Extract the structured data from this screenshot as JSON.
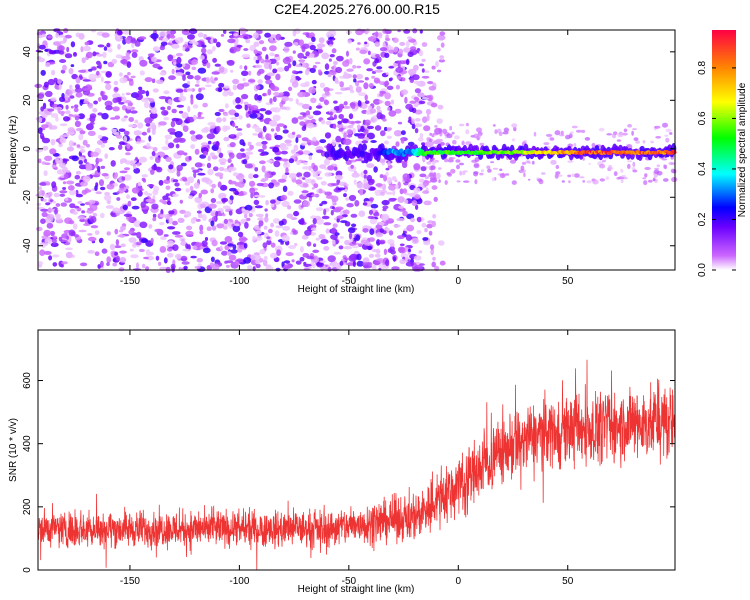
{
  "chart_data": [
    {
      "type": "heatmap",
      "title": "C2E4.2025.276.00.00.R15",
      "xlabel": "Height of straight line (km)",
      "ylabel": "Frequency (Hz)",
      "xlim": [
        -192,
        99
      ],
      "ylim": [
        -50,
        49
      ],
      "x_ticks": [
        -150,
        -100,
        -50,
        0,
        50
      ],
      "y_ticks": [
        -40,
        -20,
        0,
        20,
        40
      ],
      "colorbar": {
        "label": "Normalized spectral amplitude",
        "range": [
          0,
          0.95
        ],
        "ticks": [
          0.0,
          0.2,
          0.4,
          0.6,
          0.8
        ],
        "colormap": "purple-blue-cyan-green-yellow-red"
      },
      "carrier": {
        "frequency": -1.5,
        "segments": [
          {
            "x": -40,
            "value": 0.15
          },
          {
            "x": -30,
            "value": 0.35
          },
          {
            "x": -22,
            "value": 0.3
          },
          {
            "x": -15,
            "value": 0.55
          },
          {
            "x": 0,
            "value": 0.55
          },
          {
            "x": 25,
            "value": 0.6
          },
          {
            "x": 40,
            "value": 0.75
          },
          {
            "x": 60,
            "value": 0.9
          },
          {
            "x": 95,
            "value": 0.88
          }
        ]
      },
      "noise_edge_x": -15,
      "grid": false
    },
    {
      "type": "line",
      "xlabel": "Height of straight line (km)",
      "ylabel": "SNR (10 * v/v)",
      "xlim": [
        -192,
        99
      ],
      "ylim": [
        0,
        760
      ],
      "x_ticks": [
        -150,
        -100,
        -50,
        0,
        50
      ],
      "y_ticks": [
        0,
        200,
        400,
        600
      ],
      "color": "#ee3333",
      "trend": [
        {
          "x": -192,
          "mean": 130,
          "spread": 85
        },
        {
          "x": -60,
          "mean": 130,
          "spread": 85
        },
        {
          "x": -20,
          "mean": 170,
          "spread": 110
        },
        {
          "x": 0,
          "mean": 270,
          "spread": 150
        },
        {
          "x": 20,
          "mean": 380,
          "spread": 160
        },
        {
          "x": 40,
          "mean": 440,
          "spread": 160
        },
        {
          "x": 99,
          "mean": 470,
          "spread": 170
        }
      ],
      "grid": false
    }
  ]
}
